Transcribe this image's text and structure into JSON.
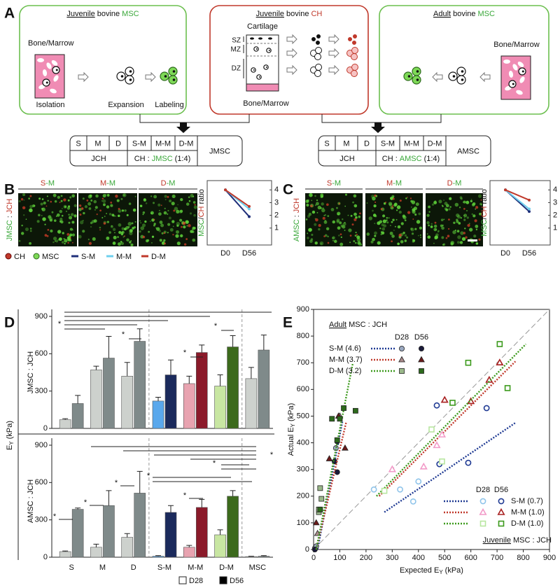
{
  "panel_labels": [
    "A",
    "B",
    "C",
    "D",
    "E"
  ],
  "panel_a": {
    "box_1": {
      "title": [
        "Juvenile",
        "bovine",
        "MSC"
      ],
      "source": "Bone/Marrow",
      "steps": [
        "Isolation",
        "Expansion",
        "Labeling"
      ]
    },
    "box_2": {
      "title": [
        "Juvenile",
        "bovine",
        "CH"
      ],
      "tissue": "Cartilage",
      "zones": [
        "SZ",
        "MZ",
        "DZ"
      ],
      "base": "Bone/Marrow"
    },
    "box_3": {
      "title": [
        "Adult",
        "bovine",
        "MSC"
      ],
      "source": "Bone/Marrow"
    },
    "table_1": {
      "cells": [
        "S",
        "M",
        "D",
        "S-M",
        "M-M",
        "D-M"
      ],
      "left": "JCH",
      "mix": [
        "CH :",
        "JMSC",
        "(1:4)"
      ],
      "group": "JMSC"
    },
    "table_2": {
      "cells": [
        "S",
        "M",
        "D",
        "S-M",
        "M-M",
        "D-M"
      ],
      "left": "JCH",
      "mix": [
        "CH :",
        "AMSC",
        "(1:4)"
      ],
      "group": "AMSC"
    }
  },
  "panel_b": {
    "columns": [
      [
        "S",
        "-M"
      ],
      [
        "M",
        "-M"
      ],
      [
        "D",
        "-M"
      ]
    ],
    "row_label": [
      "JMSC",
      ":",
      "JCH"
    ],
    "cell_legend": [
      "CH",
      "MSC"
    ]
  },
  "panel_c": {
    "columns": [
      [
        "S",
        "-M"
      ],
      [
        "M",
        "-M"
      ],
      [
        "D",
        "-M"
      ]
    ],
    "row_label": [
      "AMSC",
      ":",
      "JCH"
    ]
  },
  "panel_d": {
    "y_label": [
      "E",
      "Y",
      "(kPa)"
    ],
    "significance_marker": "*"
  },
  "chart_data": [
    {
      "type": "line",
      "ylabel": [
        "MSC",
        "/",
        "CH",
        "ratio"
      ],
      "categories": [
        "D0",
        "D56"
      ],
      "ylim": [
        0,
        4.4
      ],
      "yticks": [
        1,
        2,
        3,
        4
      ],
      "series": [
        {
          "name": "S-M",
          "color": "#1f2f7a",
          "values": [
            4,
            1.9
          ]
        },
        {
          "name": "M-M",
          "color": "#6fd0ee",
          "values": [
            4,
            2.5
          ]
        },
        {
          "name": "D-M",
          "color": "#c0392b",
          "values": [
            4,
            2.7
          ]
        }
      ]
    },
    {
      "type": "line",
      "ylabel": [
        "MSC",
        "/",
        "CH",
        "ratio"
      ],
      "categories": [
        "D0",
        "D56"
      ],
      "ylim": [
        0,
        4.4
      ],
      "yticks": [
        1,
        2,
        3,
        4
      ],
      "series": [
        {
          "color": "#1f2f7a",
          "values": [
            4,
            2.3
          ]
        },
        {
          "color": "#6fd0ee",
          "values": [
            4,
            2.5
          ]
        },
        {
          "color": "#c0392b",
          "values": [
            4,
            3.2
          ]
        }
      ]
    },
    {
      "type": "bar",
      "ylabel": "JMSC : JCH",
      "ylim": [
        0,
        900
      ],
      "yticks": [
        0,
        300,
        600,
        900
      ],
      "series": [
        {
          "colors": [
            "#cdd1cd",
            "#cdd1cd",
            "#cdd1cd",
            "#5aa8ec",
            "#e8a3b0",
            "#c8e6a2",
            "#cdd1cd"
          ],
          "values": [
            70,
            470,
            420,
            220,
            360,
            340,
            400
          ],
          "errors": [
            8,
            30,
            110,
            30,
            60,
            90,
            90
          ]
        },
        {
          "colors": [
            "#7f8a8a",
            "#7f8a8a",
            "#7f8a8a",
            "#1b2a5c",
            "#8b1a2a",
            "#3c6a1c",
            "#7f8a8a"
          ],
          "values": [
            200,
            565,
            700,
            430,
            610,
            655,
            630
          ],
          "errors": [
            65,
            175,
            100,
            120,
            60,
            90,
            120
          ]
        }
      ]
    },
    {
      "type": "bar",
      "ylabel": "AMSC : JCH",
      "categories": [
        "S",
        "M",
        "D",
        "S-M",
        "M-M",
        "D-M",
        "MSC"
      ],
      "ylim": [
        0,
        900
      ],
      "yticks": [
        0,
        300,
        600,
        900
      ],
      "series": [
        {
          "name": "D28",
          "color": "#ffffff",
          "colors": [
            "#cdd1cd",
            "#cdd1cd",
            "#cdd1cd",
            "#5aa8ec",
            "#e8a3b0",
            "#c8e6a2",
            "#cdd1cd"
          ],
          "values": [
            45,
            80,
            160,
            8,
            80,
            180,
            5
          ],
          "errors": [
            5,
            25,
            30,
            5,
            15,
            40,
            3
          ]
        },
        {
          "name": "D56",
          "color": "#000000",
          "colors": [
            "#7f8a8a",
            "#7f8a8a",
            "#7f8a8a",
            "#1b2a5c",
            "#8b1a2a",
            "#3c6a1c",
            "#7f8a8a"
          ],
          "values": [
            385,
            415,
            515,
            360,
            400,
            490,
            8
          ],
          "errors": [
            10,
            120,
            175,
            55,
            65,
            45,
            5
          ]
        }
      ]
    },
    {
      "type": "scatter",
      "xlabel": [
        "Expected E",
        "Y",
        "(kPa)"
      ],
      "ylabel": [
        "Actual E",
        "Y",
        "(kPa)"
      ],
      "xlim": [
        0,
        900
      ],
      "ylim": [
        0,
        900
      ],
      "xticks": [
        0,
        100,
        200,
        300,
        400,
        500,
        600,
        700,
        800,
        900
      ],
      "yticks": [
        0,
        100,
        200,
        300,
        400,
        500,
        600,
        700,
        800,
        900
      ],
      "groups": [
        {
          "title": [
            "Adult",
            "MSC : JCH"
          ],
          "filled": true,
          "timepoints": [
            "D28",
            "D56"
          ],
          "rows": [
            {
              "label": "S-M (4.6)",
              "color": "#1f3a93",
              "marker": "circle",
              "fit": {
                "x": [
                  15,
                  110
                ],
                "y": [
                  0,
                  480
                ]
              },
              "points": [
                {
                  "color": "#9aa8c0",
                  "x": [
                    5,
                    10,
                    85
                  ],
                  "y": [
                    5,
                    12,
                    380
                  ]
                },
                {
                  "color": "#1a1a3a",
                  "x": [
                    5,
                    80,
                    90,
                    90
                  ],
                  "y": [
                    0,
                    330,
                    290,
                    405
                  ]
                }
              ]
            },
            {
              "label": "M-M (3.7)",
              "color": "#c0392b",
              "marker": "triangle",
              "fit": {
                "x": [
                  10,
                  125
                ],
                "y": [
                  0,
                  480
                ]
              },
              "points": [
                {
                  "color": "#a88a8a",
                  "x": [
                    15,
                    100
                  ],
                  "y": [
                    60,
                    500
                  ]
                },
                {
                  "color": "#6b1a1a",
                  "x": [
                    10,
                    60,
                    95,
                    120
                  ],
                  "y": [
                    100,
                    340,
                    500,
                    380
                  ]
                }
              ]
            },
            {
              "label": "D-M (3.2)",
              "color": "#3c9a1c",
              "marker": "square",
              "fit": {
                "x": [
                  10,
                  150
                ],
                "y": [
                  0,
                  700
                ]
              },
              "points": [
                {
                  "color": "#9ab88a",
                  "x": [
                    20,
                    25,
                    30,
                    20
                  ],
                  "y": [
                    140,
                    230,
                    190,
                    150
                  ]
                },
                {
                  "color": "#2d6a1c",
                  "x": [
                    25,
                    70,
                    90,
                    100,
                    115,
                    160
                  ],
                  "y": [
                    150,
                    490,
                    410,
                    490,
                    530,
                    520
                  ]
                }
              ]
            }
          ]
        },
        {
          "title": [
            "Juvenile",
            "MSC : JCH"
          ],
          "filled": false,
          "timepoints": [
            "D28",
            "D56"
          ],
          "rows": [
            {
              "label": "S-M (0.7)",
              "color": "#1f3a93",
              "marker": "circle",
              "fit": {
                "x": [
                  270,
                  770
                ],
                "y": [
                  140,
                  475
                ]
              },
              "points": [
                {
                  "color": "#8fc4ea",
                  "x": [
                    230,
                    330,
                    380,
                    400
                  ],
                  "y": [
                    225,
                    225,
                    180,
                    255
                  ]
                },
                {
                  "color": "#1f3a93",
                  "x": [
                    470,
                    480,
                    590,
                    660
                  ],
                  "y": [
                    540,
                    320,
                    325,
                    530
                  ]
                }
              ]
            },
            {
              "label": "M-M (1.0)",
              "color": "#c0392b",
              "marker": "triangle",
              "fit": {
                "x": [
                  250,
                  770
                ],
                "y": [
                  200,
                  705
                ]
              },
              "points": [
                {
                  "color": "#f29ac8",
                  "x": [
                    300,
                    420,
                    470,
                    490
                  ],
                  "y": [
                    300,
                    310,
                    390,
                    430
                  ]
                },
                {
                  "color": "#a82020",
                  "x": [
                    500,
                    600,
                    670,
                    710
                  ],
                  "y": [
                    560,
                    555,
                    635,
                    700
                  ]
                }
              ]
            },
            {
              "label": "D-M (1.0)",
              "color": "#3c9a1c",
              "marker": "square",
              "fit": {
                "x": [
                  240,
                  810
                ],
                "y": [
                  200,
                  770
                ]
              },
              "points": [
                {
                  "color": "#b8e6a0",
                  "x": [
                    270,
                    450,
                    490
                  ],
                  "y": [
                    220,
                    450,
                    330
                  ]
                },
                {
                  "color": "#3c9a1c",
                  "x": [
                    530,
                    590,
                    710,
                    740
                  ],
                  "y": [
                    550,
                    700,
                    770,
                    605
                  ]
                }
              ]
            }
          ]
        }
      ]
    }
  ]
}
